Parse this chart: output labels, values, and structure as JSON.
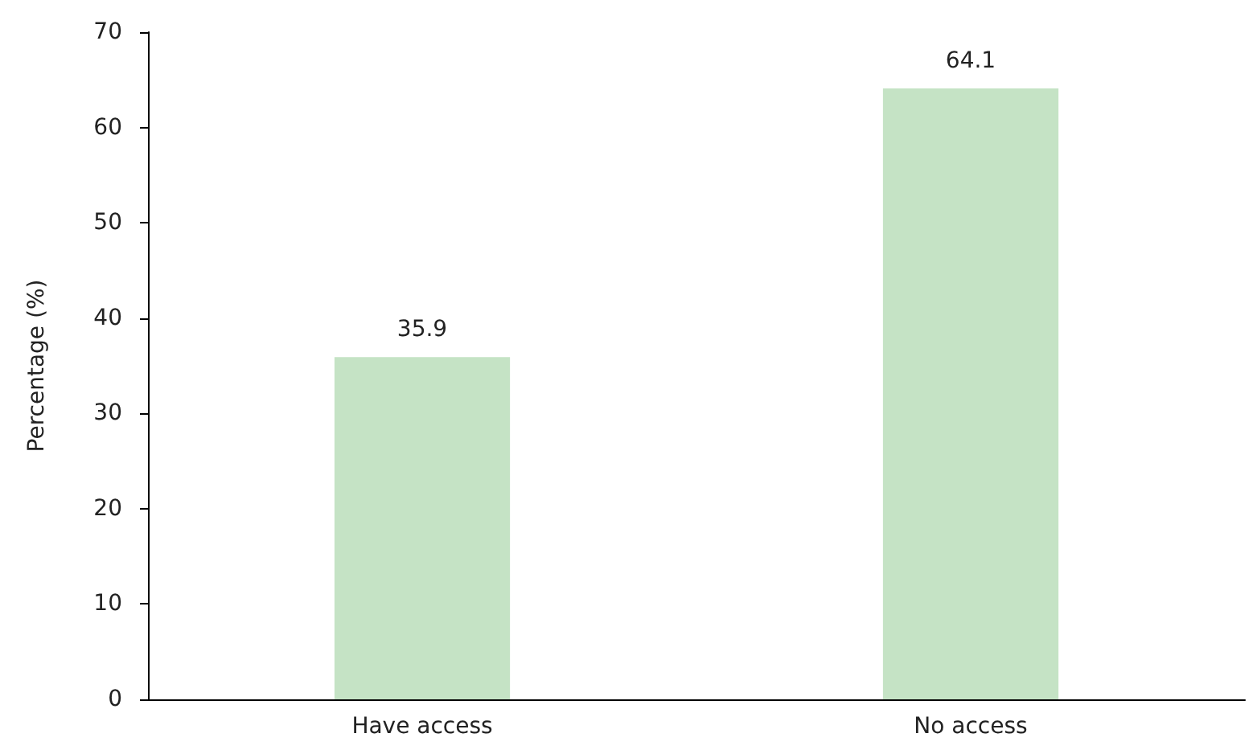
{
  "chart_data": {
    "type": "bar",
    "ylabel": "Percentage (%)",
    "categories": [
      "Have access",
      "No access"
    ],
    "values": [
      35.9,
      64.1
    ],
    "color": "#c5e3c5",
    "ylim": [
      0,
      70
    ],
    "yticks": [
      0,
      10,
      20,
      30,
      40,
      50,
      60,
      70
    ],
    "grid": false,
    "data_labels": true
  }
}
